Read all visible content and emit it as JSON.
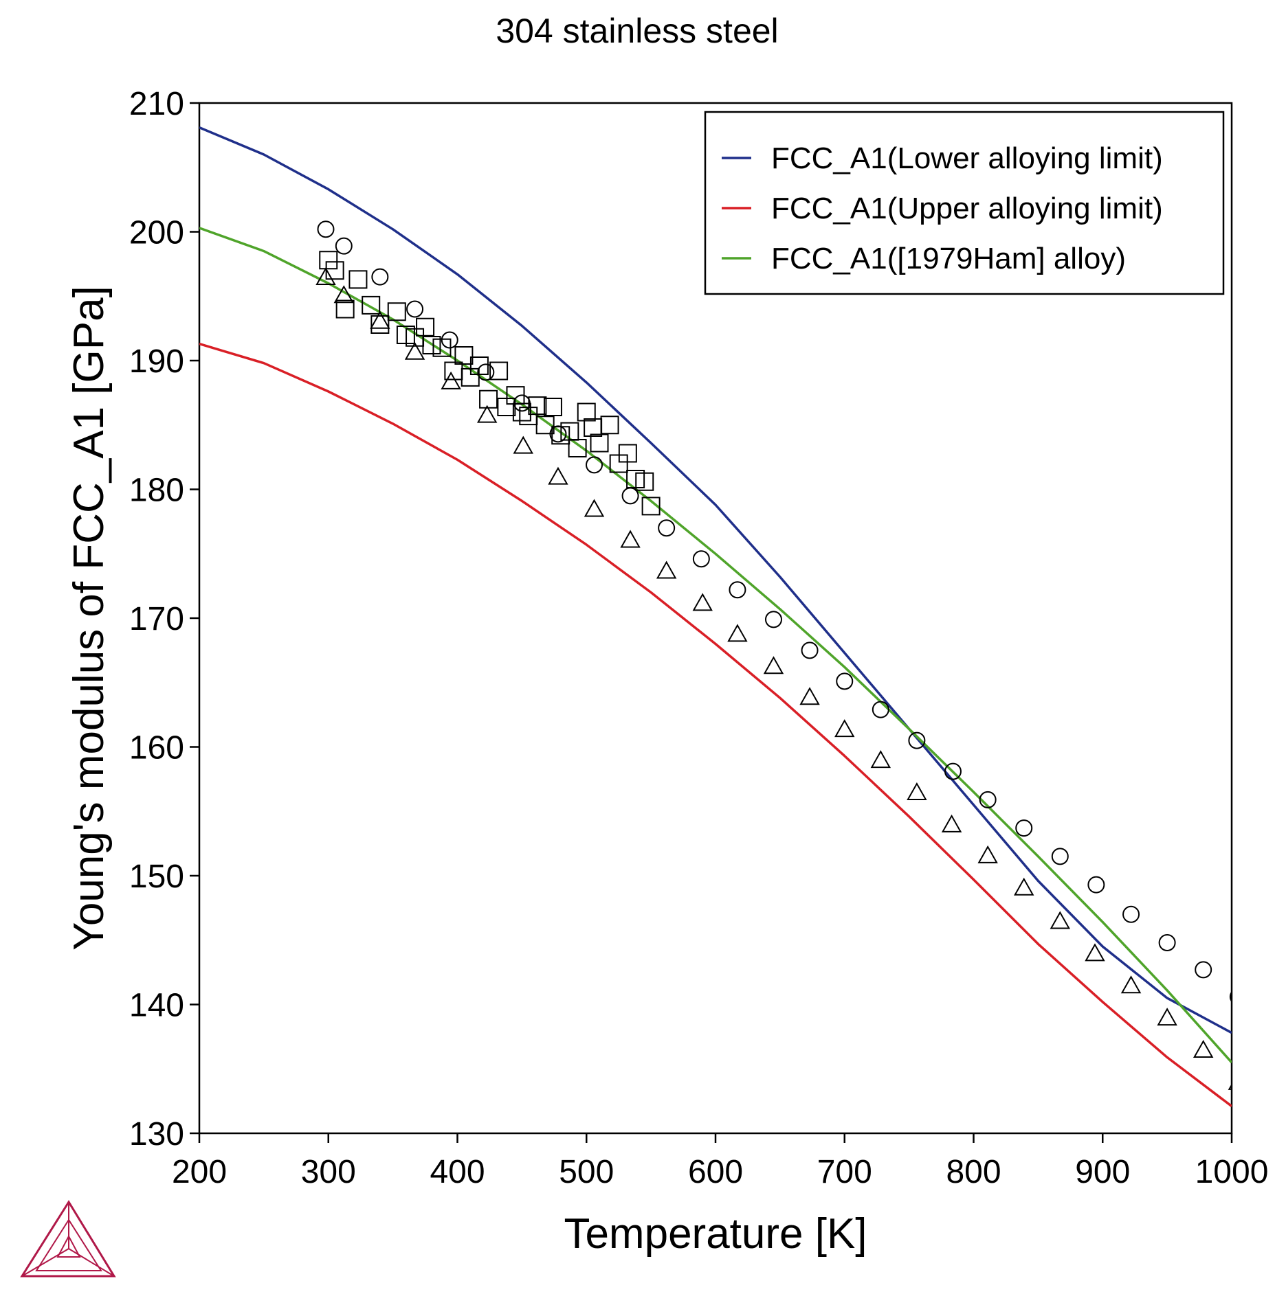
{
  "chart_data": {
    "type": "line",
    "title": "304 stainless steel",
    "xlabel": "Temperature [K]",
    "ylabel": "Young's modulus of FCC_A1 [GPa]",
    "xlim": [
      200,
      1000
    ],
    "ylim": [
      130,
      210
    ],
    "xticks": [
      200,
      300,
      400,
      500,
      600,
      700,
      800,
      900,
      1000
    ],
    "yticks": [
      130,
      140,
      150,
      160,
      170,
      180,
      190,
      200,
      210
    ],
    "xtick_labels": [
      "200",
      "300",
      "400",
      "500",
      "600",
      "700",
      "800",
      "900",
      "1000"
    ],
    "ytick_labels": [
      "130",
      "140",
      "150",
      "160",
      "170",
      "180",
      "190",
      "200",
      "210"
    ],
    "grid": false,
    "legend_position": "top-right",
    "series": [
      {
        "name": "FCC_A1(Lower alloying limit)",
        "color": "#1f2f8a",
        "x": [
          200,
          250,
          300,
          350,
          400,
          450,
          500,
          550,
          600,
          650,
          700,
          750,
          800,
          850,
          900,
          950,
          1000
        ],
        "y": [
          208.1,
          206.0,
          203.3,
          200.2,
          196.7,
          192.7,
          188.3,
          183.6,
          178.8,
          173.2,
          167.3,
          161.4,
          155.5,
          149.6,
          144.5,
          140.5,
          137.8
        ]
      },
      {
        "name": "FCC_A1(Upper alloying limit)",
        "color": "#d91f26",
        "x": [
          200,
          250,
          300,
          350,
          400,
          450,
          500,
          550,
          600,
          650,
          700,
          750,
          800,
          850,
          900,
          950,
          1000
        ],
        "y": [
          191.3,
          189.8,
          187.6,
          185.1,
          182.3,
          179.1,
          175.7,
          172.0,
          168.0,
          163.8,
          159.3,
          154.6,
          149.7,
          144.7,
          140.2,
          135.9,
          132.1
        ]
      },
      {
        "name": "FCC_A1([1979Ham] alloy)",
        "color": "#4fa42a",
        "x": [
          200,
          250,
          300,
          350,
          400,
          450,
          500,
          550,
          600,
          650,
          700,
          750,
          800,
          850,
          900,
          950,
          1000
        ],
        "y": [
          200.3,
          198.5,
          196.0,
          193.2,
          190.0,
          186.6,
          183.0,
          179.1,
          175.0,
          170.7,
          166.2,
          161.4,
          156.5,
          151.5,
          146.4,
          141.1,
          135.5
        ]
      }
    ],
    "scatter": [
      {
        "marker": "circle",
        "points": [
          [
            298,
            200.2
          ],
          [
            312,
            198.9
          ],
          [
            340,
            196.5
          ],
          [
            367,
            194.0
          ],
          [
            394,
            191.6
          ],
          [
            422,
            189.1
          ],
          [
            450,
            186.7
          ],
          [
            478,
            184.3
          ],
          [
            506,
            181.9
          ],
          [
            534,
            179.5
          ],
          [
            562,
            177.0
          ],
          [
            589,
            174.6
          ],
          [
            617,
            172.2
          ],
          [
            645,
            169.9
          ],
          [
            673,
            167.5
          ],
          [
            700,
            165.1
          ],
          [
            728,
            162.9
          ],
          [
            756,
            160.5
          ],
          [
            784,
            158.1
          ],
          [
            811,
            155.9
          ],
          [
            839,
            153.7
          ],
          [
            867,
            151.5
          ],
          [
            895,
            149.3
          ],
          [
            922,
            147.0
          ],
          [
            950,
            144.8
          ],
          [
            978,
            142.7
          ],
          [
            1005,
            140.6
          ]
        ]
      },
      {
        "marker": "square",
        "points": [
          [
            300,
            197.8
          ],
          [
            305,
            197.0
          ],
          [
            313,
            194.0
          ],
          [
            323,
            196.3
          ],
          [
            333,
            194.3
          ],
          [
            340,
            192.8
          ],
          [
            353,
            193.8
          ],
          [
            360,
            192.0
          ],
          [
            367,
            191.8
          ],
          [
            375,
            192.6
          ],
          [
            380,
            191.2
          ],
          [
            388,
            191.0
          ],
          [
            397,
            189.2
          ],
          [
            405,
            190.4
          ],
          [
            410,
            188.7
          ],
          [
            417,
            189.6
          ],
          [
            424,
            187.0
          ],
          [
            432,
            189.2
          ],
          [
            438,
            186.4
          ],
          [
            445,
            187.3
          ],
          [
            450,
            186.0
          ],
          [
            455,
            185.7
          ],
          [
            462,
            186.5
          ],
          [
            468,
            185.0
          ],
          [
            474,
            186.4
          ],
          [
            480,
            184.2
          ],
          [
            487,
            184.5
          ],
          [
            493,
            183.2
          ],
          [
            500,
            186.0
          ],
          [
            505,
            184.8
          ],
          [
            510,
            183.6
          ],
          [
            518,
            185.0
          ],
          [
            525,
            182.0
          ],
          [
            532,
            182.8
          ],
          [
            538,
            180.8
          ],
          [
            545,
            180.6
          ],
          [
            550,
            178.7
          ]
        ]
      },
      {
        "marker": "triangle",
        "points": [
          [
            298,
            196.4
          ],
          [
            312,
            195.0
          ],
          [
            340,
            193.0
          ],
          [
            367,
            190.6
          ],
          [
            395,
            188.3
          ],
          [
            423,
            185.7
          ],
          [
            451,
            183.3
          ],
          [
            478,
            180.9
          ],
          [
            506,
            178.4
          ],
          [
            534,
            176.0
          ],
          [
            562,
            173.6
          ],
          [
            590,
            171.1
          ],
          [
            617,
            168.7
          ],
          [
            645,
            166.2
          ],
          [
            673,
            163.8
          ],
          [
            700,
            161.3
          ],
          [
            728,
            158.9
          ],
          [
            756,
            156.4
          ],
          [
            783,
            153.9
          ],
          [
            811,
            151.5
          ],
          [
            839,
            149.0
          ],
          [
            867,
            146.4
          ],
          [
            894,
            143.9
          ],
          [
            922,
            141.4
          ],
          [
            950,
            138.9
          ],
          [
            978,
            136.4
          ],
          [
            1005,
            133.9
          ]
        ]
      }
    ]
  },
  "logo": {
    "name": "thermo-calc-logo",
    "color": "#b01848"
  }
}
